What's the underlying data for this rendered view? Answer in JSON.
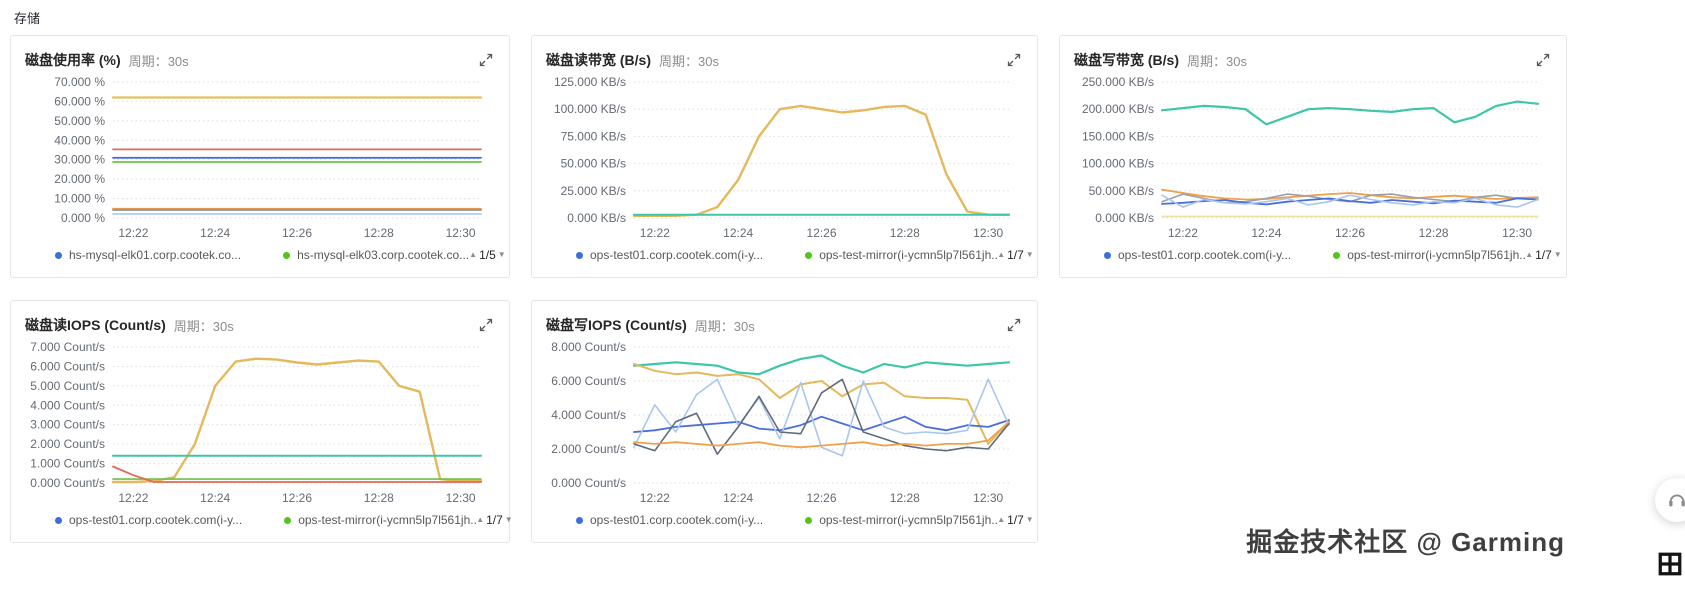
{
  "page": {
    "section_title": "存储"
  },
  "watermark": {
    "text": "掘金技术社区 @ Garming"
  },
  "icons": {
    "expand-icon": "⤢",
    "headset-icon": "🎧",
    "pixel-grid-icon": "田",
    "pager-up-icon": "▲",
    "pager-down-icon": "▼"
  },
  "panels": [
    {
      "title": "磁盘使用率 (%)",
      "period_label": "周期：",
      "period_value": "30s",
      "legend": [
        {
          "color": "#3b6fe0",
          "label": "hs-mysql-elk01.corp.cootek.co..."
        },
        {
          "color": "#52c41a",
          "label": "hs-mysql-elk03.corp.cootek.co..."
        }
      ],
      "pager": {
        "up": "▲",
        "text": "1/5",
        "down": "▼"
      }
    },
    {
      "title": "磁盘读带宽 (B/s)",
      "period_label": "周期：",
      "period_value": "30s",
      "legend": [
        {
          "color": "#3b6fe0",
          "label": "ops-test01.corp.cootek.com(i-y..."
        },
        {
          "color": "#52c41a",
          "label": "ops-test-mirror(i-ycmn5lp7l561jh..."
        }
      ],
      "pager": {
        "up": "▲",
        "text": "1/7",
        "down": "▼"
      }
    },
    {
      "title": "磁盘写带宽 (B/s)",
      "period_label": "周期：",
      "period_value": "30s",
      "legend": [
        {
          "color": "#3b6fe0",
          "label": "ops-test01.corp.cootek.com(i-y..."
        },
        {
          "color": "#52c41a",
          "label": "ops-test-mirror(i-ycmn5lp7l561jh..."
        }
      ],
      "pager": {
        "up": "▲",
        "text": "1/7",
        "down": "▼"
      }
    },
    {
      "title": "磁盘读IOPS (Count/s)",
      "period_label": "周期：",
      "period_value": "30s",
      "legend": [
        {
          "color": "#3b6fe0",
          "label": "ops-test01.corp.cootek.com(i-y..."
        },
        {
          "color": "#52c41a",
          "label": "ops-test-mirror(i-ycmn5lp7l561jh..."
        }
      ],
      "pager": {
        "up": "▲",
        "text": "1/7",
        "down": "▼"
      }
    },
    {
      "title": "磁盘写IOPS (Count/s)",
      "period_label": "周期：",
      "period_value": "30s",
      "legend": [
        {
          "color": "#3b6fe0",
          "label": "ops-test01.corp.cootek.com(i-y..."
        },
        {
          "color": "#52c41a",
          "label": "ops-test-mirror(i-ycmn5lp7l561jh..."
        }
      ],
      "pager": {
        "up": "▲",
        "text": "1/7",
        "down": "▼"
      }
    }
  ],
  "chart_data": [
    {
      "type": "line",
      "title": "磁盘使用率 (%)",
      "period": "30s",
      "points": 19,
      "x_tick_labels": [
        "12:22",
        "12:24",
        "12:26",
        "12:28",
        "12:30"
      ],
      "x_tick_indices": [
        1,
        5,
        9,
        13,
        17
      ],
      "ylim": [
        0,
        70
      ],
      "ytick_values": [
        70,
        60,
        50,
        40,
        30,
        20,
        10,
        0
      ],
      "ytick_labels": [
        "70.000 %",
        "60.000 %",
        "50.000 %",
        "40.000 %",
        "30.000 %",
        "20.000 %",
        "10.000 %",
        "0.000 %"
      ],
      "series": [
        {
          "name": "series-yellow",
          "color": "#e4c05c",
          "w": 2.2,
          "const": 62
        },
        {
          "name": "series-red",
          "color": "#e06a5a",
          "w": 1.8,
          "const": 35.3
        },
        {
          "name": "series-blue",
          "color": "#4a6fd8",
          "w": 1.8,
          "const": 31
        },
        {
          "name": "series-green",
          "color": "#6cc24a",
          "w": 1.8,
          "const": 28.8
        },
        {
          "name": "series-orange",
          "color": "#f0a04a",
          "w": 1.6,
          "const": 4.8
        },
        {
          "name": "series-brown",
          "color": "#b08850",
          "w": 1.6,
          "const": 4.4
        },
        {
          "name": "series-gray",
          "color": "#9aa0a6",
          "w": 1.6,
          "const": 4.0
        },
        {
          "name": "series-lightblue",
          "color": "#a9c6f0",
          "w": 1.6,
          "const": 2.1
        }
      ]
    },
    {
      "type": "line",
      "title": "磁盘读带宽 (B/s)",
      "period": "30s",
      "points": 19,
      "x_tick_labels": [
        "12:22",
        "12:24",
        "12:26",
        "12:28",
        "12:30"
      ],
      "x_tick_indices": [
        1,
        5,
        9,
        13,
        17
      ],
      "ylim": [
        0,
        125
      ],
      "ytick_values": [
        125,
        100,
        75,
        50,
        25,
        0
      ],
      "ytick_labels": [
        "125.000 KB/s",
        "100.000 KB/s",
        "75.000 KB/s",
        "50.000 KB/s",
        "25.000 KB/s",
        "0.000 KB/s"
      ],
      "series": [
        {
          "name": "series-yellow",
          "color": "#e4b95c",
          "w": 2.4,
          "values": [
            2,
            2,
            2,
            3,
            10,
            35,
            75,
            100,
            103,
            100,
            97,
            99,
            102,
            103,
            95,
            40,
            6,
            3,
            3
          ]
        },
        {
          "name": "series-teal",
          "color": "#3ec6a8",
          "w": 2.0,
          "const": 3
        }
      ]
    },
    {
      "type": "line",
      "title": "磁盘写带宽 (B/s)",
      "period": "30s",
      "points": 19,
      "x_tick_labels": [
        "12:22",
        "12:24",
        "12:26",
        "12:28",
        "12:30"
      ],
      "x_tick_indices": [
        1,
        5,
        9,
        13,
        17
      ],
      "ylim": [
        0,
        250
      ],
      "ytick_values": [
        250,
        200,
        150,
        100,
        50,
        0
      ],
      "ytick_labels": [
        "250.000 KB/s",
        "200.000 KB/s",
        "150.000 KB/s",
        "100.000 KB/s",
        "50.000 KB/s",
        "0.000 KB/s"
      ],
      "series": [
        {
          "name": "series-teal",
          "color": "#3ec6a8",
          "w": 2.2,
          "values": [
            198,
            202,
            206,
            204,
            200,
            172,
            186,
            200,
            202,
            200,
            197,
            195,
            200,
            202,
            176,
            186,
            206,
            214,
            210
          ]
        },
        {
          "name": "series-orange",
          "color": "#f0a04a",
          "w": 1.8,
          "values": [
            52,
            46,
            40,
            36,
            34,
            35,
            38,
            41,
            44,
            46,
            42,
            38,
            36,
            39,
            41,
            38,
            35,
            37,
            38
          ]
        },
        {
          "name": "series-gray",
          "color": "#9aa0a6",
          "w": 1.6,
          "values": [
            30,
            44,
            36,
            28,
            30,
            36,
            44,
            40,
            34,
            30,
            42,
            44,
            38,
            34,
            30,
            38,
            42,
            36,
            34
          ]
        },
        {
          "name": "series-blue",
          "color": "#4a6fd8",
          "w": 1.8,
          "values": [
            26,
            28,
            31,
            33,
            28,
            25,
            30,
            33,
            36,
            31,
            28,
            33,
            30,
            27,
            32,
            30,
            28,
            36,
            34
          ]
        },
        {
          "name": "series-lightblue",
          "color": "#a9c6f0",
          "w": 1.6,
          "values": [
            42,
            20,
            34,
            28,
            26,
            30,
            36,
            24,
            30,
            42,
            34,
            28,
            24,
            30,
            28,
            36,
            24,
            20,
            34
          ]
        },
        {
          "name": "series-paleyellow",
          "color": "#f0e0a0",
          "w": 1.6,
          "const": 3
        }
      ]
    },
    {
      "type": "line",
      "title": "磁盘读IOPS (Count/s)",
      "period": "30s",
      "points": 19,
      "x_tick_labels": [
        "12:22",
        "12:24",
        "12:26",
        "12:28",
        "12:30"
      ],
      "x_tick_indices": [
        1,
        5,
        9,
        13,
        17
      ],
      "ylim": [
        0,
        7
      ],
      "ytick_values": [
        7,
        6,
        5,
        4,
        3,
        2,
        1,
        0
      ],
      "ytick_labels": [
        "7.000 Count/s",
        "6.000 Count/s",
        "5.000 Count/s",
        "4.000 Count/s",
        "3.000 Count/s",
        "2.000 Count/s",
        "1.000 Count/s",
        "0.000 Count/s"
      ],
      "series": [
        {
          "name": "series-yellow",
          "color": "#e4b95c",
          "w": 2.4,
          "values": [
            0.05,
            0.05,
            0.1,
            0.3,
            2,
            5,
            6.25,
            6.4,
            6.35,
            6.2,
            6.1,
            6.2,
            6.3,
            6.25,
            5.0,
            4.7,
            0.2,
            0.1,
            0.1
          ]
        },
        {
          "name": "series-teal",
          "color": "#3ec6a8",
          "w": 2.0,
          "const": 1.4
        },
        {
          "name": "series-green",
          "color": "#6cc24a",
          "w": 1.6,
          "const": 0.2
        },
        {
          "name": "series-red",
          "color": "#e06a5a",
          "w": 1.8,
          "values": [
            0.85,
            0.4,
            0.05,
            0.05,
            0.05,
            0.05,
            0.05,
            0.05,
            0.05,
            0.05,
            0.05,
            0.05,
            0.05,
            0.05,
            0.05,
            0.05,
            0.05,
            0.05,
            0.05
          ]
        }
      ]
    },
    {
      "type": "line",
      "title": "磁盘写IOPS (Count/s)",
      "period": "30s",
      "points": 19,
      "x_tick_labels": [
        "12:22",
        "12:24",
        "12:26",
        "12:28",
        "12:30"
      ],
      "x_tick_indices": [
        1,
        5,
        9,
        13,
        17
      ],
      "ylim": [
        0,
        8
      ],
      "ytick_values": [
        8,
        6,
        4,
        2,
        0
      ],
      "ytick_labels": [
        "8.000 Count/s",
        "6.000 Count/s",
        "4.000 Count/s",
        "2.000 Count/s",
        "0.000 Count/s"
      ],
      "series": [
        {
          "name": "series-teal",
          "color": "#3ec6a8",
          "w": 2.2,
          "values": [
            6.9,
            7.0,
            7.1,
            7.0,
            6.9,
            6.5,
            6.4,
            6.9,
            7.3,
            7.5,
            6.9,
            6.5,
            7.0,
            6.8,
            7.1,
            7.0,
            6.9,
            7.0,
            7.1
          ]
        },
        {
          "name": "series-yellow",
          "color": "#e4b95c",
          "w": 2.0,
          "values": [
            7.0,
            6.6,
            6.4,
            6.5,
            6.3,
            6.4,
            6.1,
            5.0,
            5.8,
            6.0,
            5.1,
            5.8,
            5.9,
            5.1,
            5.0,
            5.0,
            4.9,
            2.3,
            3.6
          ]
        },
        {
          "name": "series-blue",
          "color": "#4a6fd8",
          "w": 1.8,
          "values": [
            3.0,
            3.1,
            3.3,
            3.4,
            3.5,
            3.6,
            3.2,
            3.1,
            3.4,
            3.9,
            3.5,
            3.1,
            3.5,
            3.9,
            3.3,
            3.1,
            3.4,
            3.3,
            3.7
          ]
        },
        {
          "name": "series-lightblue",
          "color": "#a9c6f0",
          "w": 1.6,
          "values": [
            2.1,
            4.6,
            3.0,
            5.2,
            6.1,
            3.4,
            5.0,
            2.6,
            5.9,
            2.1,
            1.6,
            6.0,
            3.3,
            2.9,
            3.0,
            2.9,
            3.1,
            6.1,
            3.4
          ]
        },
        {
          "name": "series-gray",
          "color": "#5f6b7a",
          "w": 1.6,
          "values": [
            2.3,
            1.9,
            3.6,
            4.1,
            1.7,
            3.3,
            5.1,
            3.0,
            2.9,
            5.3,
            6.1,
            3.0,
            2.6,
            2.2,
            2.0,
            1.9,
            2.1,
            2.0,
            3.5
          ]
        },
        {
          "name": "series-orange",
          "color": "#f0a04a",
          "w": 1.8,
          "values": [
            2.4,
            2.3,
            2.4,
            2.3,
            2.2,
            2.3,
            2.4,
            2.2,
            2.1,
            2.2,
            2.3,
            2.4,
            2.2,
            2.3,
            2.2,
            2.3,
            2.3,
            2.5,
            3.6
          ]
        }
      ]
    }
  ]
}
